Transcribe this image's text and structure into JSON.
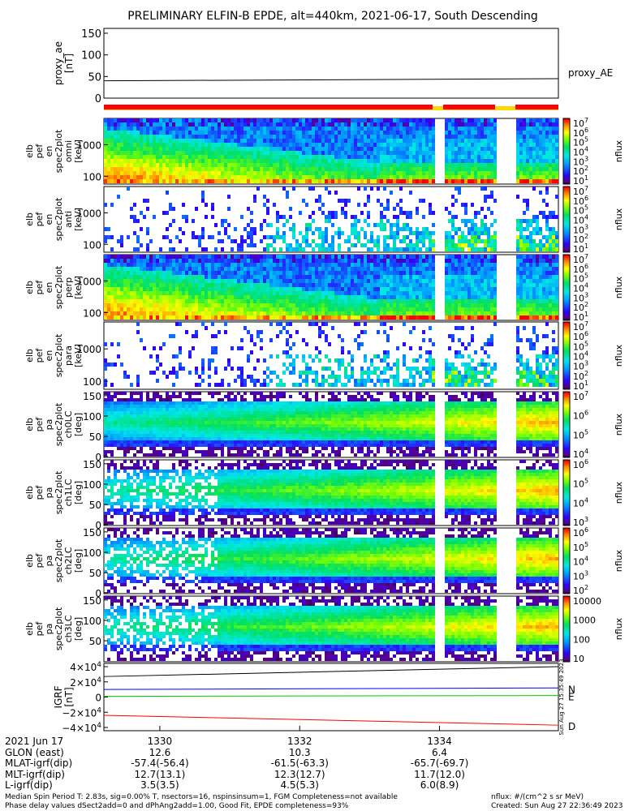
{
  "title": "PRELIMINARY ELFIN-B EPDE, alt=440km, 2021-06-17, South Descending",
  "colors": {
    "ae_line": "#000000",
    "red_bar": "#ff0000",
    "yellow_bar": "#ffd700",
    "N": "#0000ff",
    "E": "#00cc00",
    "D": "#ff0000"
  },
  "chart_data": [
    {
      "type": "line",
      "name": "proxy_ae",
      "ylabel": "proxy_ae\n[nT]",
      "yticks": [
        "150",
        "100",
        "50",
        "0"
      ],
      "ylim": [
        0,
        150
      ],
      "legend": "proxy_AE",
      "x": [
        1329.2,
        1335.7
      ],
      "y": [
        40,
        45
      ]
    },
    {
      "type": "heatmap",
      "ylabel_lines": [
        "elb",
        "pef",
        "en",
        "spec2plot",
        "omni",
        "[keV]"
      ],
      "yticks": [
        "1000",
        "100"
      ],
      "cbar_ticks": [
        "10^7",
        "10^6",
        "10^5",
        "10^4",
        "10^3",
        "10^2",
        "10^1"
      ],
      "cbar_label": "nflux",
      "kind": "energy",
      "fill": "dense"
    },
    {
      "type": "heatmap",
      "ylabel_lines": [
        "elb",
        "pef",
        "en",
        "spec2plot",
        "anti",
        "[keV]"
      ],
      "yticks": [
        "1000",
        "100"
      ],
      "cbar_ticks": [
        "10^7",
        "10^6",
        "10^5",
        "10^4",
        "10^3",
        "10^2",
        "10^1"
      ],
      "cbar_label": "nflux",
      "kind": "energy",
      "fill": "sparse"
    },
    {
      "type": "heatmap",
      "ylabel_lines": [
        "elb",
        "pef",
        "en",
        "spec2plot",
        "perp",
        "[keV]"
      ],
      "yticks": [
        "1000",
        "100"
      ],
      "cbar_ticks": [
        "10^7",
        "10^6",
        "10^5",
        "10^4",
        "10^3",
        "10^2",
        "10^1"
      ],
      "cbar_label": "nflux",
      "kind": "energy",
      "fill": "dense"
    },
    {
      "type": "heatmap",
      "ylabel_lines": [
        "elb",
        "pef",
        "en",
        "spec2plot",
        "para",
        "[keV]"
      ],
      "yticks": [
        "1000",
        "100"
      ],
      "cbar_ticks": [
        "10^7",
        "10^6",
        "10^5",
        "10^4",
        "10^3",
        "10^2",
        "10^1"
      ],
      "cbar_label": "nflux",
      "kind": "energy",
      "fill": "sparse"
    },
    {
      "type": "heatmap",
      "ylabel_lines": [
        "elb",
        "pef",
        "pa",
        "spec2plot",
        "ch0LC",
        "[deg]"
      ],
      "yticks": [
        "150",
        "100",
        "50",
        "0"
      ],
      "cbar_ticks": [
        "10^7",
        "10^6",
        "10^5",
        "10^4"
      ],
      "cbar_label": "nflux",
      "kind": "pitch"
    },
    {
      "type": "heatmap",
      "ylabel_lines": [
        "elb",
        "pef",
        "pa",
        "spec2plot",
        "ch1LC",
        "[deg]"
      ],
      "yticks": [
        "150",
        "100",
        "50",
        "0"
      ],
      "cbar_ticks": [
        "10^6",
        "10^5",
        "10^4",
        "10^3"
      ],
      "cbar_label": "nflux",
      "kind": "pitch"
    },
    {
      "type": "heatmap",
      "ylabel_lines": [
        "elb",
        "pef",
        "pa",
        "spec2plot",
        "ch2LC",
        "[deg]"
      ],
      "yticks": [
        "150",
        "100",
        "50",
        "0"
      ],
      "cbar_ticks": [
        "10^6",
        "10^5",
        "10^4",
        "10^3",
        "10^2"
      ],
      "cbar_label": "nflux",
      "kind": "pitch"
    },
    {
      "type": "heatmap",
      "ylabel_lines": [
        "elb",
        "pef",
        "pa",
        "spec2plot",
        "ch3LC",
        "[deg]"
      ],
      "yticks": [
        "150",
        "100",
        "50"
      ],
      "cbar_ticks": [
        "10000",
        "1000",
        "100",
        "10"
      ],
      "cbar_label": "nflux",
      "kind": "pitch"
    },
    {
      "type": "line",
      "ylabel": "IGRF\n[nT]",
      "yticks": [
        "4×10^4",
        "2×10^4",
        "0",
        "−2×10^4",
        "−4×10^4"
      ],
      "ylim": [
        -40000,
        40000
      ],
      "series": [
        {
          "name": "N",
          "y": [
            10000,
            12000
          ]
        },
        {
          "name": "E",
          "y": [
            1000,
            2000
          ]
        },
        {
          "name": "D",
          "y": [
            -24000,
            -37000
          ]
        },
        {
          "name": "",
          "y": [
            27000,
            40000
          ]
        }
      ]
    }
  ],
  "xaxis": {
    "ticks": [
      "1330",
      "1332",
      "1334"
    ],
    "tick_values": [
      1330,
      1332,
      1334
    ],
    "range": [
      1329.2,
      1335.7
    ]
  },
  "footer_rows": [
    {
      "label": "2021 Jun 17",
      "v1": "1330",
      "v2": "1332",
      "v3": "1334"
    },
    {
      "label": "GLON (east)",
      "v1": "12.6",
      "v2": "10.3",
      "v3": "6.4"
    },
    {
      "label": "MLAT-igrf(dip)",
      "v1": "-57.4(-56.4)",
      "v2": "-61.5(-63.3)",
      "v3": "-65.7(-69.7)"
    },
    {
      "label": "MLT-igrf(dip)",
      "v1": "12.7(13.1)",
      "v2": "12.3(12.7)",
      "v3": "11.7(12.0)"
    },
    {
      "label": "L-igrf(dip)",
      "v1": "3.5(3.5)",
      "v2": "4.5(5.3)",
      "v3": "6.0(8.9)"
    }
  ],
  "notes": {
    "left1": "Median Spin Period T: 2.83s, sig=0.00% T, nsectors=16, nspinsinsum=1, FGM Completeness=not available",
    "left2": "Phase delay values dSect2add=0 and dPhAng2add=1.00, Good Fit, EPDE completeness=93%",
    "right1": "nflux: #/(cm^2 s sr MeV)",
    "right2": "Created: Sun Aug 27 22:36:49 2023",
    "side_stamp": "Sun Aug 27 15:35:49 2023"
  }
}
